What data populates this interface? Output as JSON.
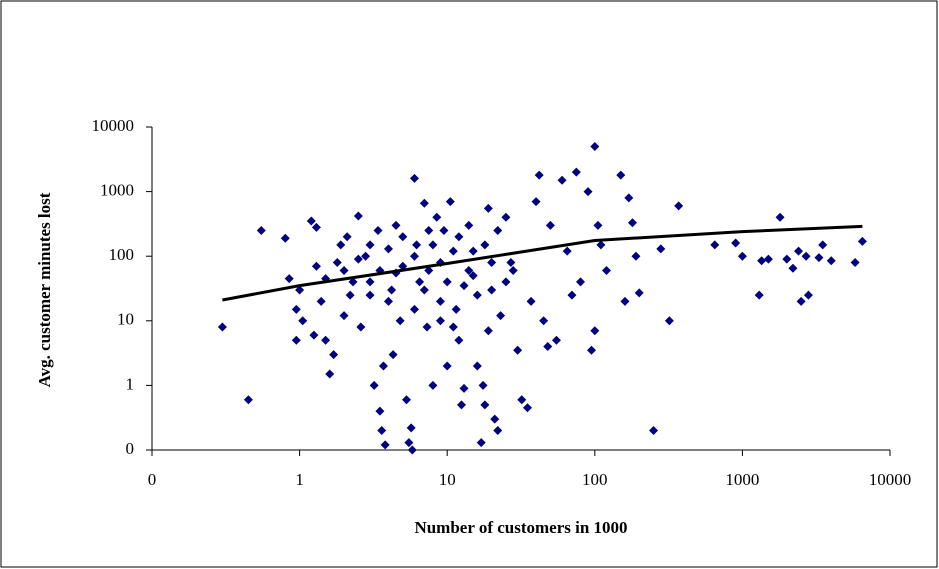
{
  "chart_data": {
    "type": "scatter",
    "x_label": "Number of customers in 1000",
    "y_label": "Avg. customer minutes lost",
    "x_log": true,
    "y_log": true,
    "xlim": [
      0.1,
      10000
    ],
    "ylim": [
      0.1,
      10000
    ],
    "xticks": [
      {
        "value": 0.1,
        "label": "0"
      },
      1,
      10,
      100,
      1000,
      10000
    ],
    "yticks": [
      {
        "value": 0.1,
        "label": "0"
      },
      1,
      10,
      100,
      1000,
      10000
    ],
    "marker": "diamond",
    "series": [
      {
        "color": "#000080",
        "x": [
          0.3,
          0.45,
          0.55,
          0.8,
          0.85,
          0.95,
          0.95,
          1.0,
          1.05,
          1.2,
          1.25,
          1.3,
          1.3,
          1.4,
          1.5,
          1.6,
          1.7,
          1.8,
          1.9,
          2,
          2.1,
          2.3,
          2.5,
          2.6,
          2.8,
          3,
          3.2,
          3.4,
          3.5,
          3.6,
          3.7,
          3.8,
          4,
          4.2,
          4.3,
          4.5,
          4.8,
          5,
          5.3,
          5.5,
          5.7,
          5.8,
          6,
          6.2,
          6.5,
          7,
          7.3,
          7.5,
          8,
          8.5,
          9,
          9.5,
          10,
          10.5,
          11,
          11.5,
          12,
          12.5,
          13,
          14,
          15,
          16,
          17,
          17.5,
          18,
          19,
          20,
          21,
          22,
          23,
          25,
          27,
          30,
          32,
          35,
          37,
          40,
          42,
          45,
          48,
          50,
          55,
          60,
          65,
          70,
          75,
          80,
          90,
          95,
          100,
          100,
          105,
          110,
          120,
          150,
          160,
          170,
          180,
          190,
          200,
          250,
          280,
          320,
          370,
          650,
          900,
          1000,
          1300,
          1350,
          1500,
          1800,
          2000,
          2200,
          2400,
          2500,
          2700,
          2800,
          3300,
          3500,
          4000,
          5800,
          6500,
          2,
          2.5,
          3,
          3.5,
          4,
          5,
          6,
          7,
          8,
          9,
          10,
          12,
          14,
          16,
          18,
          20,
          22,
          25,
          3,
          6,
          9,
          11,
          13,
          15,
          19,
          28,
          1.5,
          2.2,
          4.5,
          7.5
        ],
        "values": [
          8,
          0.6,
          250,
          190,
          45,
          15,
          5,
          30,
          10,
          350,
          6,
          280,
          70,
          20,
          5,
          1.5,
          3,
          80,
          150,
          12,
          200,
          40,
          420,
          8,
          100,
          25,
          1,
          250,
          0.4,
          0.2,
          2,
          0.12,
          130,
          30,
          3,
          300,
          10,
          70,
          0.6,
          0.13,
          0.22,
          0.1,
          1600,
          150,
          40,
          660,
          8,
          60,
          1,
          400,
          20,
          250,
          2,
          700,
          120,
          15,
          5,
          0.5,
          0.9,
          300,
          50,
          2,
          0.13,
          1,
          0.5,
          550,
          30,
          0.3,
          0.2,
          12,
          400,
          80,
          3.5,
          0.6,
          0.45,
          20,
          700,
          1800,
          10,
          4,
          300,
          5,
          1500,
          120,
          25,
          2000,
          40,
          1000,
          3.5,
          5000,
          7,
          300,
          150,
          60,
          1800,
          20,
          800,
          330,
          100,
          27,
          0.2,
          130,
          10,
          600,
          150,
          160,
          100,
          25,
          85,
          90,
          400,
          90,
          65,
          120,
          20,
          100,
          25,
          95,
          150,
          85,
          80,
          170,
          60,
          90,
          150,
          60,
          20,
          200,
          100,
          30,
          150,
          80,
          40,
          200,
          60,
          25,
          150,
          80,
          250,
          40,
          40,
          15,
          10,
          8,
          35,
          120,
          7,
          60,
          45,
          25,
          55,
          250
        ]
      }
    ],
    "trend_line": {
      "color": "#000000",
      "x": [
        0.3,
        1,
        10,
        100,
        1000,
        6500
      ],
      "values": [
        21,
        35,
        77,
        175,
        240,
        290
      ]
    }
  }
}
